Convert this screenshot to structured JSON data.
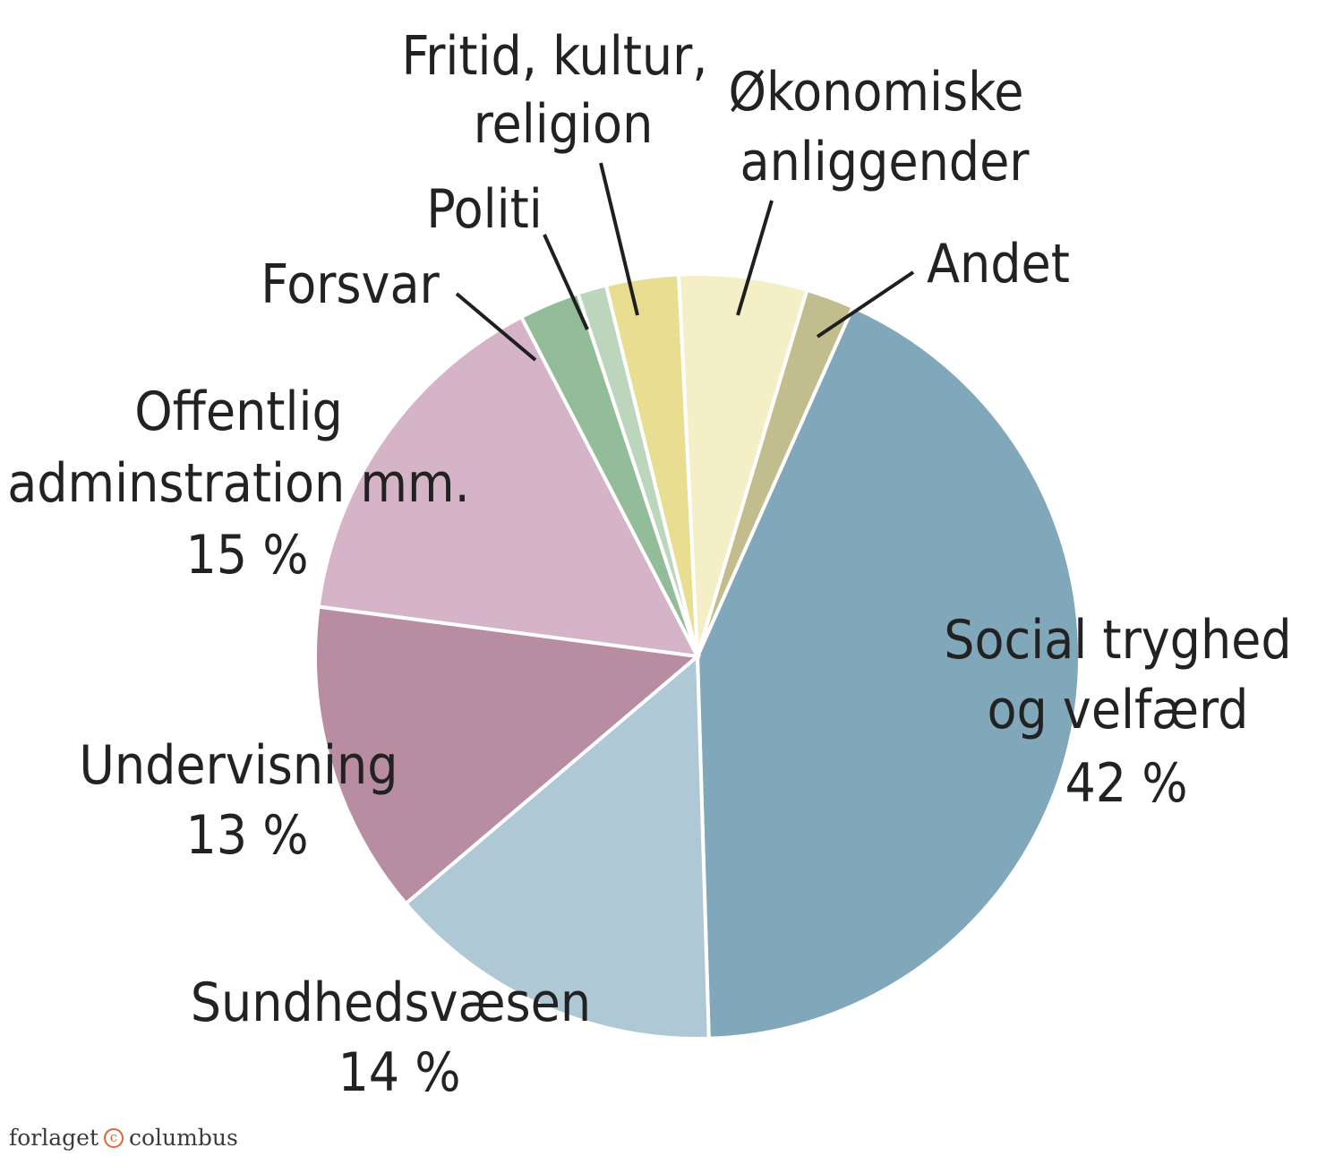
{
  "chart_data": {
    "type": "pie",
    "categories": [
      "Social tryghed og velfærd",
      "Sundhedsvæsen",
      "Undervisning",
      "Offentlig adminstration mm.",
      "Forsvar",
      "Politi",
      "Fritid, kultur, religion",
      "Økonomiske anliggender",
      "Andet"
    ],
    "values": [
      42,
      14,
      13,
      15,
      2.5,
      1.2,
      3,
      5.3,
      2
    ],
    "value_labels": [
      "42 %",
      "14 %",
      "13 %",
      "15 %",
      "",
      "",
      "",
      "",
      ""
    ],
    "colors": [
      "#81a7bb",
      "#afc8d5",
      "#b88ca1",
      "#d4b4c6",
      "#92bd98",
      "#bcd6be",
      "#e8dd91",
      "#f5efc8",
      "#c2bd8d"
    ],
    "start_angle_deg": 24,
    "direction": "clockwise",
    "title": "",
    "legend": "none"
  },
  "labels": [
    {
      "lines": [
        "Social tryghed",
        "og velfærd",
        "42 %"
      ]
    },
    {
      "lines": [
        "Sundhedsvæsen",
        "14 %"
      ]
    },
    {
      "lines": [
        "Undervisning",
        "13 %"
      ]
    },
    {
      "lines": [
        "Offentlig",
        "adminstration mm.",
        "15 %"
      ]
    },
    {
      "lines": [
        "Forsvar"
      ]
    },
    {
      "lines": [
        "Politi"
      ]
    },
    {
      "lines": [
        "Fritid, kultur,",
        "religion"
      ]
    },
    {
      "lines": [
        "Økonomiske",
        "anliggender"
      ]
    },
    {
      "lines": [
        "Andet"
      ]
    }
  ],
  "footer": {
    "publisher_left": "forlaget",
    "copyright_symbol": "c",
    "publisher_right": "columbus"
  }
}
